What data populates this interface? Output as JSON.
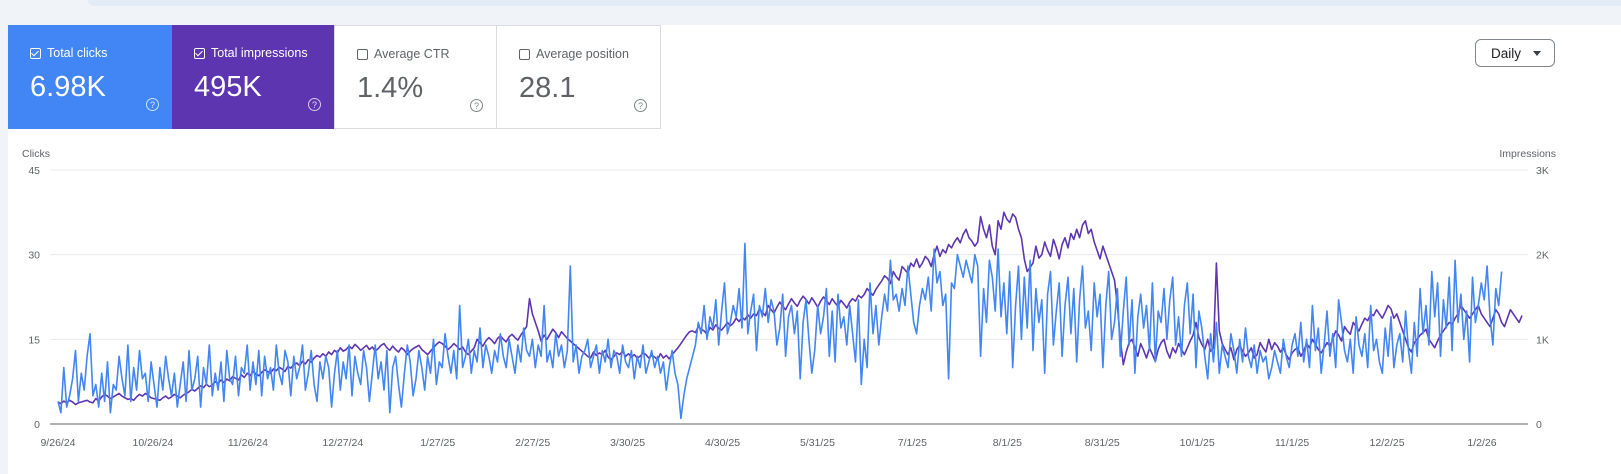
{
  "metrics": [
    {
      "label": "Total clicks",
      "value": "6.98K",
      "checked": true,
      "color": "#4285f4"
    },
    {
      "label": "Total impressions",
      "value": "495K",
      "checked": true,
      "color": "#5e35b1"
    },
    {
      "label": "Average CTR",
      "value": "1.4%",
      "checked": false
    },
    {
      "label": "Average position",
      "value": "28.1",
      "checked": false
    }
  ],
  "granularity": {
    "selected": "Daily"
  },
  "help_glyph": "?",
  "chart_data": {
    "type": "line",
    "left_axis": {
      "label": "Clicks",
      "ticks": [
        "0",
        "15",
        "30",
        "45"
      ],
      "range": [
        0,
        45
      ]
    },
    "right_axis": {
      "label": "Impressions",
      "ticks": [
        "0",
        "1K",
        "2K",
        "3K"
      ],
      "range": [
        0,
        3000
      ]
    },
    "x_ticks": [
      "9/26/24",
      "10/26/24",
      "11/26/24",
      "12/27/24",
      "1/27/25",
      "2/27/25",
      "3/30/25",
      "4/30/25",
      "5/31/25",
      "7/1/25",
      "8/1/25",
      "8/31/25",
      "10/1/25",
      "11/1/25",
      "12/2/25",
      "1/2/26"
    ],
    "grid": true,
    "series": [
      {
        "name": "Total clicks",
        "color": "#4285f4",
        "axis": "left",
        "start_date": "2024-09-26",
        "values": [
          4,
          2,
          10,
          3,
          5,
          8,
          13,
          4,
          9,
          6,
          12,
          16,
          5,
          7,
          3,
          9,
          4,
          11,
          2,
          7,
          6,
          12,
          8,
          5,
          14,
          4,
          10,
          6,
          13,
          8,
          9,
          4,
          11,
          7,
          3,
          10,
          6,
          12,
          8,
          5,
          9,
          3,
          7,
          11,
          4,
          13,
          6,
          8,
          12,
          3,
          10,
          7,
          14,
          5,
          9,
          6,
          11,
          4,
          13,
          8,
          7,
          12,
          5,
          10,
          9,
          14,
          6,
          11,
          7,
          13,
          5,
          12,
          8,
          10,
          6,
          14,
          9,
          7,
          13,
          11,
          5,
          12,
          8,
          10,
          14,
          6,
          9,
          13,
          7,
          4,
          11,
          8,
          12,
          10,
          3,
          9,
          13,
          6,
          11,
          8,
          14,
          5,
          12,
          9,
          7,
          13,
          10,
          4,
          9,
          14,
          8,
          11,
          6,
          13,
          2,
          10,
          12,
          7,
          3,
          9,
          14,
          11,
          5,
          8,
          13,
          10,
          6,
          12,
          9,
          15,
          7,
          11,
          10,
          16,
          12,
          9,
          13,
          8,
          21,
          10,
          12,
          15,
          9,
          13,
          11,
          17,
          10,
          14,
          12,
          9,
          13,
          11,
          16,
          12,
          10,
          15,
          12,
          9,
          14,
          11,
          17,
          13,
          12,
          15,
          10,
          14,
          12,
          21,
          11,
          13,
          10,
          16,
          12,
          14,
          10,
          13,
          28,
          11,
          14,
          9,
          12,
          13,
          15,
          10,
          12,
          14,
          9,
          13,
          11,
          15,
          10,
          13,
          12,
          9,
          14,
          11,
          10,
          13,
          8,
          12,
          10,
          14,
          9,
          11,
          13,
          10,
          12,
          9,
          11,
          6,
          10,
          13,
          9,
          7,
          1,
          5,
          8,
          10,
          12,
          14,
          18,
          16,
          21,
          15,
          19,
          17,
          22,
          14,
          20,
          25,
          16,
          18,
          21,
          19,
          24,
          17,
          32,
          16,
          20,
          23,
          13,
          21,
          19,
          24,
          18,
          22,
          20,
          14,
          17,
          23,
          12,
          19,
          21,
          16,
          20,
          8,
          18,
          22,
          15,
          9,
          13,
          21,
          16,
          19,
          24,
          12,
          20,
          11,
          23,
          17,
          19,
          14,
          21,
          16,
          11,
          22,
          7,
          15,
          10,
          25,
          16,
          21,
          14,
          19,
          23,
          20,
          29,
          22,
          23,
          20,
          24,
          21,
          28,
          23,
          18,
          16,
          21,
          24,
          22,
          26,
          20,
          31,
          25,
          27,
          21,
          23,
          8,
          25,
          24,
          30,
          28,
          26,
          29,
          27,
          25,
          30,
          28,
          12,
          24,
          18,
          29,
          26,
          20,
          31,
          19,
          25,
          16,
          27,
          10,
          21,
          28,
          15,
          26,
          17,
          29,
          13,
          24,
          18,
          22,
          9,
          23,
          27,
          14,
          20,
          25,
          12,
          21,
          26,
          16,
          24,
          11,
          22,
          28,
          17,
          20,
          13,
          25,
          19,
          23,
          10,
          21,
          27,
          15,
          18,
          24,
          12,
          20,
          26,
          14,
          22,
          9,
          19,
          23,
          17,
          21,
          13,
          25,
          11,
          20,
          18,
          24,
          15,
          22,
          26,
          14,
          19,
          12,
          21,
          25,
          16,
          23,
          10,
          20,
          17,
          12,
          8,
          16,
          11,
          18,
          9,
          14,
          12,
          10,
          16,
          13,
          9,
          15,
          11,
          17,
          12,
          10,
          14,
          9,
          13,
          11,
          12,
          8,
          10,
          13,
          11,
          9,
          15,
          12,
          10,
          14,
          16,
          12,
          18,
          11,
          15,
          10,
          21,
          13,
          17,
          9,
          14,
          20,
          12,
          16,
          10,
          22,
          18,
          13,
          11,
          15,
          9,
          19,
          14,
          12,
          16,
          10,
          21,
          13,
          15,
          11,
          9,
          17,
          12,
          19,
          10,
          14,
          16,
          11,
          20,
          13,
          9,
          18,
          12,
          24,
          16,
          21,
          14,
          27,
          19,
          25,
          12,
          22,
          17,
          26,
          13,
          29,
          18,
          23,
          15,
          20,
          11,
          26,
          18,
          21,
          25,
          22,
          28,
          19,
          14,
          24,
          21,
          27
        ]
      },
      {
        "name": "Total impressions",
        "color": "#5e35b1",
        "axis": "right",
        "start_date": "2024-09-26",
        "values": [
          260,
          240,
          270,
          250,
          280,
          260,
          230,
          250,
          260,
          270,
          280,
          260,
          250,
          300,
          270,
          320,
          350,
          330,
          300,
          320,
          340,
          360,
          330,
          310,
          290,
          300,
          280,
          320,
          350,
          330,
          360,
          340,
          310,
          300,
          290,
          280,
          310,
          330,
          300,
          320,
          350,
          330,
          310,
          340,
          360,
          380,
          410,
          390,
          420,
          450,
          430,
          470,
          440,
          460,
          500,
          480,
          520,
          490,
          530,
          510,
          560,
          540,
          520,
          580,
          550,
          600,
          570,
          620,
          590,
          570,
          610,
          640,
          620,
          600,
          650,
          630,
          670,
          650,
          620,
          680,
          660,
          700,
          720,
          690,
          740,
          710,
          760,
          730,
          780,
          810,
          790,
          830,
          800,
          850,
          820,
          870,
          840,
          900,
          860,
          880,
          920,
          890,
          940,
          910,
          870,
          900,
          930,
          880,
          910,
          860,
          890,
          930,
          950,
          900,
          870,
          920,
          880,
          850,
          900,
          870,
          820,
          860,
          890,
          910,
          930,
          880,
          850,
          820,
          860,
          900,
          940,
          970,
          950,
          920,
          880,
          910,
          950,
          920,
          880,
          910,
          850,
          820,
          860,
          900,
          1000,
          960,
          920,
          980,
          1020,
          990,
          950,
          1010,
          1040,
          1000,
          970,
          1030,
          1060,
          1020,
          990,
          1050,
          1100,
          1150,
          1480,
          1300,
          1200,
          1100,
          980,
          1050,
          1000,
          1060,
          1120,
          1080,
          1020,
          1090,
          1050,
          1010,
          980,
          950,
          920,
          890,
          860,
          830,
          800,
          780,
          850,
          810,
          840,
          820,
          870,
          790,
          760,
          800,
          840,
          820,
          860,
          800,
          830,
          790,
          820,
          780,
          800,
          840,
          820,
          780,
          810,
          790,
          760,
          830,
          780,
          810,
          770,
          820,
          860,
          900,
          950,
          1000,
          1050,
          1090,
          1100,
          1080,
          1150,
          1120,
          1100,
          1060,
          1140,
          1110,
          1170,
          1130,
          1110,
          1150,
          1200,
          1160,
          1190,
          1250,
          1210,
          1260,
          1230,
          1290,
          1250,
          1300,
          1280,
          1360,
          1320,
          1280,
          1400,
          1350,
          1310,
          1380,
          1440,
          1390,
          1350,
          1420,
          1480,
          1430,
          1390,
          1460,
          1510,
          1470,
          1420,
          1490,
          1440,
          1380,
          1450,
          1500,
          1460,
          1410,
          1480,
          1430,
          1390,
          1460,
          1420,
          1370,
          1440,
          1480,
          1450,
          1520,
          1490,
          1530,
          1600,
          1560,
          1520,
          1590,
          1640,
          1690,
          1750,
          1720,
          1660,
          1800,
          1740,
          1700,
          1860,
          1820,
          1780,
          1900,
          1860,
          1950,
          1850,
          1900,
          1980,
          1940,
          1860,
          2000,
          2100,
          1980,
          2060,
          2020,
          2120,
          2080,
          2150,
          2200,
          2140,
          2240,
          2300,
          2200,
          2160,
          2100,
          2150,
          2450,
          2300,
          2200,
          2350,
          2100,
          2000,
          2400,
          2300,
          2500,
          2420,
          2380,
          2480,
          2440,
          2300,
          2200,
          1950,
          1800,
          1850,
          1900,
          2100,
          1960,
          2000,
          2150,
          2050,
          1980,
          2180,
          2080,
          1950,
          2120,
          2200,
          2080,
          2250,
          2180,
          2300,
          2200,
          2350,
          2400,
          2250,
          2300,
          2150,
          2050,
          1950,
          2100,
          2000,
          1900,
          1800,
          1700,
          1400,
          1000,
          700,
          850,
          960,
          1000,
          900,
          800,
          950,
          870,
          780,
          900,
          820,
          740,
          880,
          960,
          1000,
          860,
          780,
          900,
          840,
          950,
          880,
          820,
          900,
          980,
          1050,
          1200,
          1020,
          940,
          880,
          1000,
          860,
          900,
          1900,
          1100,
          950,
          880,
          820,
          900,
          760,
          880,
          930,
          860,
          800,
          840,
          900,
          780,
          820,
          960,
          900,
          850,
          1000,
          880,
          960,
          920,
          850,
          900,
          820,
          760,
          840,
          880,
          900,
          800,
          860,
          950,
          900,
          1000,
          940,
          880,
          840,
          900,
          960,
          920,
          1000,
          1100,
          1050,
          980,
          1150,
          1100,
          1060,
          1200,
          1150,
          1100,
          1180,
          1250,
          1220,
          1300,
          1280,
          1350,
          1300,
          1250,
          1320,
          1400,
          1360,
          1250,
          1300,
          1200,
          1100,
          1000,
          900,
          850,
          960,
          1000,
          1050,
          1080,
          1120,
          1000,
          950,
          900,
          980,
          1050,
          1100,
          1150,
          1200,
          1180,
          1250,
          1300,
          1400,
          1350,
          1300,
          1250,
          1300,
          1350,
          1400,
          1300,
          1250,
          1200,
          1150,
          1250,
          1350,
          1300,
          1200,
          1150,
          1250,
          1350,
          1300,
          1250,
          1200,
          1280
        ]
      }
    ]
  }
}
